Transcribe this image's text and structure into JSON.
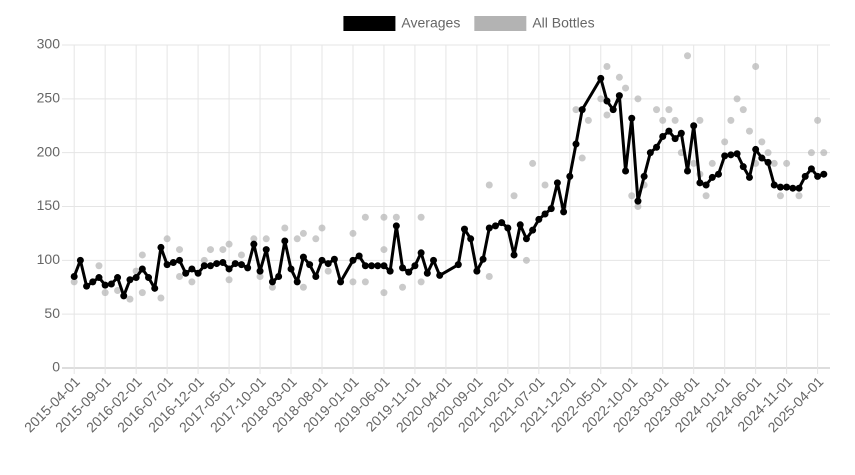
{
  "chart_data": {
    "type": "line",
    "series": [
      {
        "name": "Averages",
        "color": "#000000",
        "kind": "line",
        "x": [
          "2015-04-01",
          "2015-05-01",
          "2015-06-01",
          "2015-07-01",
          "2015-08-01",
          "2015-09-01",
          "2015-10-01",
          "2015-11-01",
          "2015-12-01",
          "2016-01-01",
          "2016-02-01",
          "2016-03-01",
          "2016-04-01",
          "2016-05-01",
          "2016-06-01",
          "2016-07-01",
          "2016-08-01",
          "2016-09-01",
          "2016-10-01",
          "2016-11-01",
          "2016-12-01",
          "2017-01-01",
          "2017-02-01",
          "2017-03-01",
          "2017-04-01",
          "2017-05-01",
          "2017-06-01",
          "2017-07-01",
          "2017-08-01",
          "2017-09-01",
          "2017-10-01",
          "2017-11-01",
          "2017-12-01",
          "2018-01-01",
          "2018-02-01",
          "2018-03-01",
          "2018-04-01",
          "2018-05-01",
          "2018-06-01",
          "2018-07-01",
          "2018-08-01",
          "2018-09-01",
          "2018-10-01",
          "2018-11-01",
          "2019-01-01",
          "2019-02-01",
          "2019-03-01",
          "2019-04-01",
          "2019-05-01",
          "2019-06-01",
          "2019-07-01",
          "2019-08-01",
          "2019-09-01",
          "2019-10-01",
          "2019-11-01",
          "2019-12-01",
          "2020-01-01",
          "2020-02-01",
          "2020-03-01",
          "2020-06-01",
          "2020-07-01",
          "2020-08-01",
          "2020-09-01",
          "2020-10-01",
          "2020-11-01",
          "2020-12-01",
          "2021-01-01",
          "2021-02-01",
          "2021-03-01",
          "2021-04-01",
          "2021-05-01",
          "2021-06-01",
          "2021-07-01",
          "2021-08-01",
          "2021-09-01",
          "2021-10-01",
          "2021-11-01",
          "2021-12-01",
          "2022-01-01",
          "2022-02-01",
          "2022-05-01",
          "2022-06-01",
          "2022-07-01",
          "2022-08-01",
          "2022-09-01",
          "2022-10-01",
          "2022-11-01",
          "2022-12-01",
          "2023-01-01",
          "2023-02-01",
          "2023-03-01",
          "2023-04-01",
          "2023-05-01",
          "2023-06-01",
          "2023-07-01",
          "2023-08-01",
          "2023-09-01",
          "2023-10-01",
          "2023-11-01",
          "2023-12-01",
          "2024-01-01",
          "2024-02-01",
          "2024-03-01",
          "2024-04-01",
          "2024-05-01",
          "2024-06-01",
          "2024-07-01",
          "2024-08-01",
          "2024-09-01",
          "2024-10-01",
          "2024-11-01",
          "2024-12-01",
          "2025-01-01",
          "2025-02-01",
          "2025-03-01",
          "2025-04-01",
          "2025-05-01"
        ],
        "values": [
          85,
          100,
          76,
          80,
          84,
          77,
          78,
          84,
          67,
          82,
          84,
          92,
          84,
          74,
          112,
          96,
          98,
          100,
          88,
          92,
          88,
          95,
          95,
          97,
          98,
          92,
          97,
          96,
          93,
          115,
          90,
          110,
          80,
          85,
          118,
          92,
          80,
          103,
          96,
          85,
          100,
          97,
          101,
          80,
          100,
          104,
          95,
          95,
          95,
          95,
          90,
          132,
          93,
          89,
          95,
          107,
          88,
          100,
          86,
          96,
          129,
          120,
          90,
          101,
          130,
          132,
          135,
          130,
          105,
          133,
          120,
          128,
          138,
          143,
          148,
          172,
          145,
          178,
          208,
          240,
          269,
          248,
          240,
          253,
          183,
          232,
          155,
          178,
          200,
          205,
          215,
          220,
          213,
          218,
          183,
          225,
          172,
          170,
          177,
          180,
          197,
          198,
          199,
          187,
          177,
          203,
          195,
          191,
          170,
          168,
          168,
          167,
          167,
          178,
          185,
          178,
          180
        ]
      },
      {
        "name": "All Bottles",
        "color": "#b3b3b3",
        "kind": "scatter",
        "x": [
          "2015-04-01",
          "2015-08-01",
          "2015-09-01",
          "2015-11-01",
          "2016-01-01",
          "2016-02-01",
          "2016-03-01",
          "2016-03-01",
          "2016-06-01",
          "2016-07-01",
          "2016-09-01",
          "2016-09-01",
          "2016-11-01",
          "2017-01-01",
          "2017-02-01",
          "2017-04-01",
          "2017-05-01",
          "2017-05-01",
          "2017-07-01",
          "2017-09-01",
          "2017-10-01",
          "2017-11-01",
          "2017-12-01",
          "2018-02-01",
          "2018-04-01",
          "2018-05-01",
          "2018-05-01",
          "2018-07-01",
          "2018-08-01",
          "2018-09-01",
          "2019-01-01",
          "2019-01-01",
          "2019-03-01",
          "2019-03-01",
          "2019-06-01",
          "2019-06-01",
          "2019-06-01",
          "2019-08-01",
          "2019-09-01",
          "2019-12-01",
          "2019-12-01",
          "2020-11-01",
          "2020-11-01",
          "2021-03-01",
          "2021-05-01",
          "2021-06-01",
          "2021-08-01",
          "2021-11-01",
          "2022-01-01",
          "2022-02-01",
          "2022-03-01",
          "2022-05-01",
          "2022-06-01",
          "2022-06-01",
          "2022-08-01",
          "2022-09-01",
          "2022-10-01",
          "2022-11-01",
          "2022-11-01",
          "2022-12-01",
          "2023-02-01",
          "2023-03-01",
          "2023-04-01",
          "2023-05-01",
          "2023-06-01",
          "2023-07-01",
          "2023-08-01",
          "2023-09-01",
          "2023-09-01",
          "2023-10-01",
          "2023-11-01",
          "2024-01-01",
          "2024-02-01",
          "2024-03-01",
          "2024-04-01",
          "2024-05-01",
          "2024-06-01",
          "2024-06-01",
          "2024-07-01",
          "2024-08-01",
          "2024-09-01",
          "2024-10-01",
          "2024-11-01",
          "2025-01-01",
          "2025-03-01",
          "2025-04-01",
          "2025-05-01"
        ],
        "values": [
          80,
          95,
          70,
          72,
          64,
          90,
          105,
          70,
          65,
          120,
          110,
          85,
          80,
          100,
          110,
          110,
          115,
          82,
          105,
          120,
          85,
          120,
          75,
          130,
          120,
          125,
          75,
          120,
          130,
          90,
          125,
          80,
          140,
          80,
          140,
          70,
          110,
          140,
          75,
          140,
          80,
          170,
          85,
          160,
          100,
          190,
          170,
          150,
          240,
          195,
          230,
          250,
          280,
          235,
          270,
          260,
          160,
          250,
          150,
          170,
          240,
          230,
          240,
          230,
          200,
          290,
          190,
          230,
          180,
          160,
          190,
          210,
          230,
          250,
          240,
          220,
          280,
          190,
          210,
          200,
          190,
          160,
          190,
          160,
          200,
          230,
          200
        ]
      }
    ],
    "xlim": [
      "2015-03-01",
      "2025-06-01"
    ],
    "xticks": [
      "2015-04-01",
      "2015-09-01",
      "2016-02-01",
      "2016-07-01",
      "2016-12-01",
      "2017-05-01",
      "2017-10-01",
      "2018-03-01",
      "2018-08-01",
      "2019-01-01",
      "2019-06-01",
      "2019-11-01",
      "2020-04-01",
      "2020-09-01",
      "2021-02-01",
      "2021-07-01",
      "2021-12-01",
      "2022-05-01",
      "2022-10-01",
      "2023-03-01",
      "2023-08-01",
      "2024-01-01",
      "2024-06-01",
      "2024-11-01",
      "2025-04-01"
    ],
    "ylim": [
      0,
      300
    ],
    "yticks": [
      0,
      50,
      100,
      150,
      200,
      250,
      300
    ],
    "grid": true,
    "legend": "top"
  }
}
